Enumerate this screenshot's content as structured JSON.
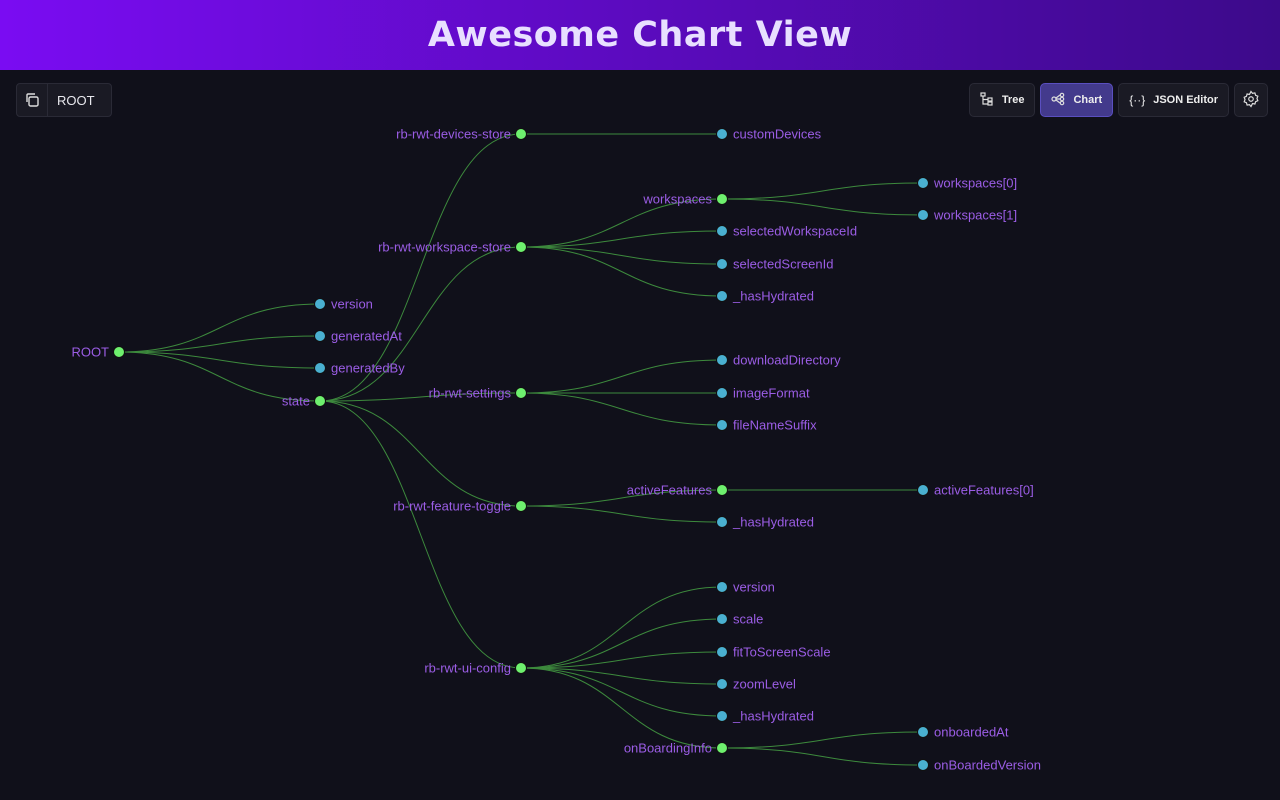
{
  "header": {
    "title": "Awesome Chart View"
  },
  "breadcrumb": {
    "label": "ROOT"
  },
  "toolbar": {
    "tree": "Tree",
    "chart": "Chart",
    "json_editor": "JSON Editor",
    "active": "Chart"
  },
  "colors": {
    "branch_node": "#6ef06e",
    "leaf_node": "#4ab0d0",
    "label": "#9b5de5",
    "link": "#3d8a3d"
  },
  "tree": {
    "name": "ROOT",
    "children": [
      {
        "name": "version"
      },
      {
        "name": "generatedAt"
      },
      {
        "name": "generatedBy"
      },
      {
        "name": "state",
        "children": [
          {
            "name": "rb-rwt-devices-store",
            "children": [
              {
                "name": "customDevices"
              }
            ]
          },
          {
            "name": "rb-rwt-workspace-store",
            "children": [
              {
                "name": "workspaces",
                "children": [
                  {
                    "name": "workspaces[0]"
                  },
                  {
                    "name": "workspaces[1]"
                  }
                ]
              },
              {
                "name": "selectedWorkspaceId"
              },
              {
                "name": "selectedScreenId"
              },
              {
                "name": "_hasHydrated"
              }
            ]
          },
          {
            "name": "rb-rwt-settings",
            "children": [
              {
                "name": "downloadDirectory"
              },
              {
                "name": "imageFormat"
              },
              {
                "name": "fileNameSuffix"
              }
            ]
          },
          {
            "name": "rb-rwt-feature-toggle",
            "children": [
              {
                "name": "activeFeatures",
                "children": [
                  {
                    "name": "activeFeatures[0]"
                  }
                ]
              },
              {
                "name": "_hasHydrated"
              }
            ]
          },
          {
            "name": "rb-rwt-ui-config",
            "children": [
              {
                "name": "version"
              },
              {
                "name": "scale"
              },
              {
                "name": "fitToScreenScale"
              },
              {
                "name": "zoomLevel"
              },
              {
                "name": "_hasHydrated"
              },
              {
                "name": "onBoardingInfo",
                "children": [
                  {
                    "name": "onboardedAt"
                  },
                  {
                    "name": "onBoardedVersion"
                  }
                ]
              }
            ]
          }
        ]
      }
    ]
  }
}
